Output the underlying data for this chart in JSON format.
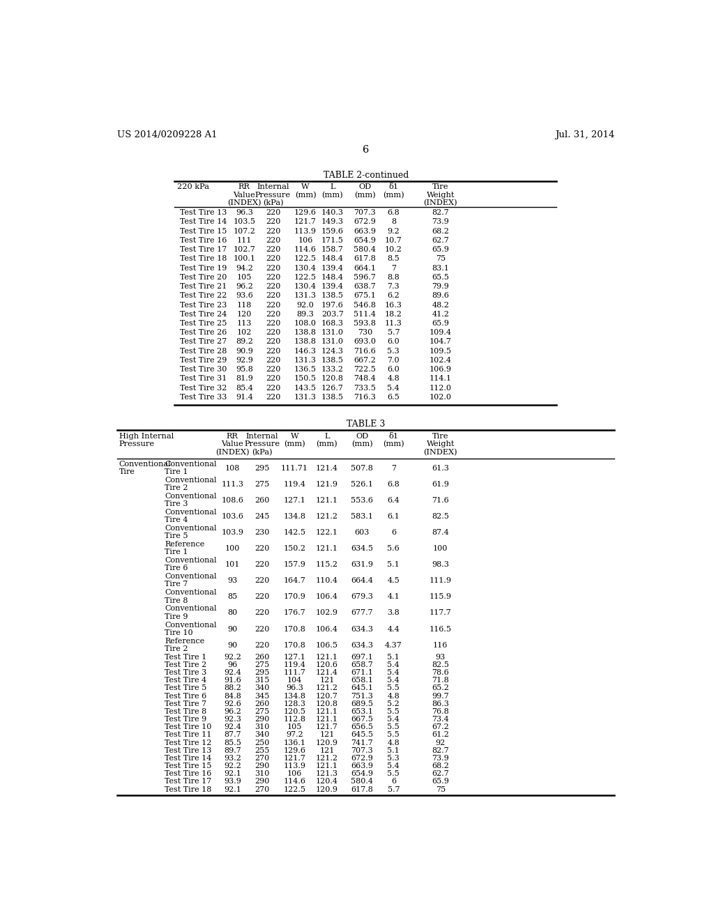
{
  "patent_left": "US 2014/0209228 A1",
  "patent_right": "Jul. 31, 2014",
  "page_number": "6",
  "table2_title": "TABLE 2-continued",
  "table3_title": "TABLE 3",
  "table2_rows": [
    [
      "Test Tire 13",
      "96.3",
      "220",
      "129.6",
      "140.3",
      "707.3",
      "6.8",
      "82.7"
    ],
    [
      "Test Tire 14",
      "103.5",
      "220",
      "121.7",
      "149.3",
      "672.9",
      "8",
      "73.9"
    ],
    [
      "Test Tire 15",
      "107.2",
      "220",
      "113.9",
      "159.6",
      "663.9",
      "9.2",
      "68.2"
    ],
    [
      "Test Tire 16",
      "111",
      "220",
      "106",
      "171.5",
      "654.9",
      "10.7",
      "62.7"
    ],
    [
      "Test Tire 17",
      "102.7",
      "220",
      "114.6",
      "158.7",
      "580.4",
      "10.2",
      "65.9"
    ],
    [
      "Test Tire 18",
      "100.1",
      "220",
      "122.5",
      "148.4",
      "617.8",
      "8.5",
      "75"
    ],
    [
      "Test Tire 19",
      "94.2",
      "220",
      "130.4",
      "139.4",
      "664.1",
      "7",
      "83.1"
    ],
    [
      "Test Tire 20",
      "105",
      "220",
      "122.5",
      "148.4",
      "596.7",
      "8.8",
      "65.5"
    ],
    [
      "Test Tire 21",
      "96.2",
      "220",
      "130.4",
      "139.4",
      "638.7",
      "7.3",
      "79.9"
    ],
    [
      "Test Tire 22",
      "93.6",
      "220",
      "131.3",
      "138.5",
      "675.1",
      "6.2",
      "89.6"
    ],
    [
      "Test Tire 23",
      "118",
      "220",
      "92.0",
      "197.6",
      "546.8",
      "16.3",
      "48.2"
    ],
    [
      "Test Tire 24",
      "120",
      "220",
      "89.3",
      "203.7",
      "511.4",
      "18.2",
      "41.2"
    ],
    [
      "Test Tire 25",
      "113",
      "220",
      "108.0",
      "168.3",
      "593.8",
      "11.3",
      "65.9"
    ],
    [
      "Test Tire 26",
      "102",
      "220",
      "138.8",
      "131.0",
      "730",
      "5.7",
      "109.4"
    ],
    [
      "Test Tire 27",
      "89.2",
      "220",
      "138.8",
      "131.0",
      "693.0",
      "6.0",
      "104.7"
    ],
    [
      "Test Tire 28",
      "90.9",
      "220",
      "146.3",
      "124.3",
      "716.6",
      "5.3",
      "109.5"
    ],
    [
      "Test Tire 29",
      "92.9",
      "220",
      "131.3",
      "138.5",
      "667.2",
      "7.0",
      "102.4"
    ],
    [
      "Test Tire 30",
      "95.8",
      "220",
      "136.5",
      "133.2",
      "722.5",
      "6.0",
      "106.9"
    ],
    [
      "Test Tire 31",
      "81.9",
      "220",
      "150.5",
      "120.8",
      "748.4",
      "4.8",
      "114.1"
    ],
    [
      "Test Tire 32",
      "85.4",
      "220",
      "143.5",
      "126.7",
      "733.5",
      "5.4",
      "112.0"
    ],
    [
      "Test Tire 33",
      "91.4",
      "220",
      "131.3",
      "138.5",
      "716.3",
      "6.5",
      "102.0"
    ]
  ],
  "table3_rows": [
    [
      "Conventional\nTire",
      "Conventional\nTire 1",
      "108",
      "295",
      "111.71",
      "121.4",
      "507.8",
      "7",
      "61.3"
    ],
    [
      "",
      "Conventional\nTire 2",
      "111.3",
      "275",
      "119.4",
      "121.9",
      "526.1",
      "6.8",
      "61.9"
    ],
    [
      "",
      "Conventional\nTire 3",
      "108.6",
      "260",
      "127.1",
      "121.1",
      "553.6",
      "6.4",
      "71.6"
    ],
    [
      "",
      "Conventional\nTire 4",
      "103.6",
      "245",
      "134.8",
      "121.2",
      "583.1",
      "6.1",
      "82.5"
    ],
    [
      "",
      "Conventional\nTire 5",
      "103.9",
      "230",
      "142.5",
      "122.1",
      "603",
      "6",
      "87.4"
    ],
    [
      "",
      "Reference\nTire 1",
      "100",
      "220",
      "150.2",
      "121.1",
      "634.5",
      "5.6",
      "100"
    ],
    [
      "",
      "Conventional\nTire 6",
      "101",
      "220",
      "157.9",
      "115.2",
      "631.9",
      "5.1",
      "98.3"
    ],
    [
      "",
      "Conventional\nTire 7",
      "93",
      "220",
      "164.7",
      "110.4",
      "664.4",
      "4.5",
      "111.9"
    ],
    [
      "",
      "Conventional\nTire 8",
      "85",
      "220",
      "170.9",
      "106.4",
      "679.3",
      "4.1",
      "115.9"
    ],
    [
      "",
      "Conventional\nTire 9",
      "80",
      "220",
      "176.7",
      "102.9",
      "677.7",
      "3.8",
      "117.7"
    ],
    [
      "",
      "Conventional\nTire 10",
      "90",
      "220",
      "170.8",
      "106.4",
      "634.3",
      "4.4",
      "116.5"
    ],
    [
      "",
      "Reference\nTire 2",
      "90",
      "220",
      "170.8",
      "106.5",
      "634.3",
      "4.37",
      "116"
    ],
    [
      "",
      "Test Tire 1",
      "92.2",
      "260",
      "127.1",
      "121.1",
      "697.1",
      "5.1",
      "93"
    ],
    [
      "",
      "Test Tire 2",
      "96",
      "275",
      "119.4",
      "120.6",
      "658.7",
      "5.4",
      "82.5"
    ],
    [
      "",
      "Test Tire 3",
      "92.4",
      "295",
      "111.7",
      "121.4",
      "671.1",
      "5.4",
      "78.6"
    ],
    [
      "",
      "Test Tire 4",
      "91.6",
      "315",
      "104",
      "121",
      "658.1",
      "5.4",
      "71.8"
    ],
    [
      "",
      "Test Tire 5",
      "88.2",
      "340",
      "96.3",
      "121.2",
      "645.1",
      "5.5",
      "65.2"
    ],
    [
      "",
      "Test Tire 6",
      "84.8",
      "345",
      "134.8",
      "120.7",
      "751.3",
      "4.8",
      "99.7"
    ],
    [
      "",
      "Test Tire 7",
      "92.6",
      "260",
      "128.3",
      "120.8",
      "689.5",
      "5.2",
      "86.3"
    ],
    [
      "",
      "Test Tire 8",
      "96.2",
      "275",
      "120.5",
      "121.1",
      "653.1",
      "5.5",
      "76.8"
    ],
    [
      "",
      "Test Tire 9",
      "92.3",
      "290",
      "112.8",
      "121.1",
      "667.5",
      "5.4",
      "73.4"
    ],
    [
      "",
      "Test Tire 10",
      "92.4",
      "310",
      "105",
      "121.7",
      "656.5",
      "5.5",
      "67.2"
    ],
    [
      "",
      "Test Tire 11",
      "87.7",
      "340",
      "97.2",
      "121",
      "645.5",
      "5.5",
      "61.2"
    ],
    [
      "",
      "Test Tire 12",
      "85.5",
      "250",
      "136.1",
      "120.9",
      "741.7",
      "4.8",
      "92"
    ],
    [
      "",
      "Test Tire 13",
      "89.7",
      "255",
      "129.6",
      "121",
      "707.3",
      "5.1",
      "82.7"
    ],
    [
      "",
      "Test Tire 14",
      "93.2",
      "270",
      "121.7",
      "121.2",
      "672.9",
      "5.3",
      "73.9"
    ],
    [
      "",
      "Test Tire 15",
      "92.2",
      "290",
      "113.9",
      "121.1",
      "663.9",
      "5.4",
      "68.2"
    ],
    [
      "",
      "Test Tire 16",
      "92.1",
      "310",
      "106",
      "121.3",
      "654.9",
      "5.5",
      "62.7"
    ],
    [
      "",
      "Test Tire 17",
      "93.9",
      "290",
      "114.6",
      "120.4",
      "580.4",
      "6",
      "65.9"
    ],
    [
      "",
      "Test Tire 18",
      "92.1",
      "270",
      "122.5",
      "120.9",
      "617.8",
      "5.7",
      "75"
    ]
  ]
}
